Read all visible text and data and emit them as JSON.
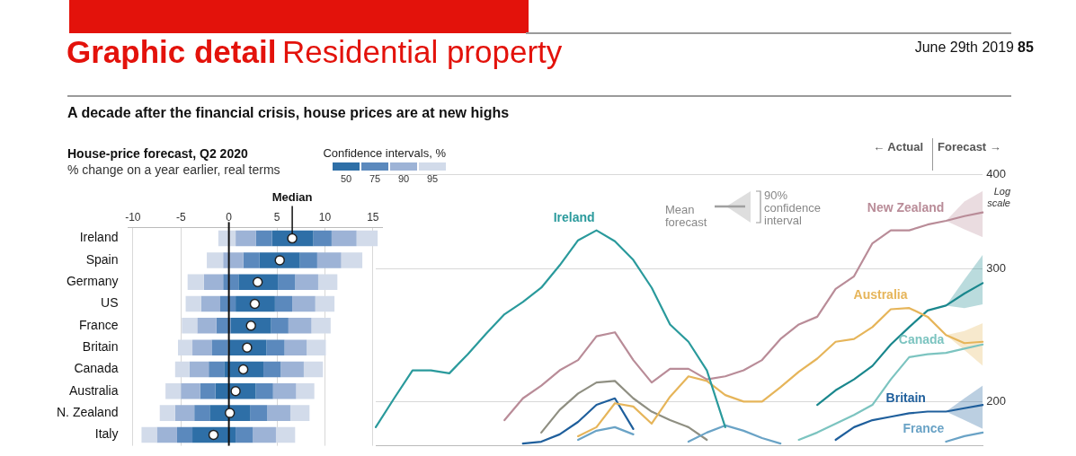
{
  "chart_data": [
    {
      "type": "bar",
      "orientation": "horizontal",
      "title": "House-price forecast, Q2 2020",
      "subtitle": "% change on a year earlier, real terms",
      "legend_title": "Confidence intervals, %",
      "legend": "top right",
      "grid": "x",
      "marker": "circle",
      "annotations": [
        "Graphic detail",
        "Residential property",
        "June 29th 2019",
        "85",
        "A decade after the financial crisis, house prices are at new highs"
      ],
      "categories": [
        "Ireland",
        "Spain",
        "Germany",
        "US",
        "France",
        "Britain",
        "Canada",
        "Australia",
        "N. Zealand",
        "Italy"
      ],
      "xlim": [
        -10.5,
        16
      ],
      "xticks": [
        -10,
        -5,
        0,
        5,
        10,
        15
      ],
      "ref_lines": [
        {
          "axis": "x",
          "value": 0,
          "color": "#111111"
        }
      ],
      "series": [
        {
          "color": "#d2dbea",
          "base": [
            -1.1,
            -2.3,
            -4.3,
            -4.5,
            -4.9,
            -5.3,
            -5.6,
            -6.6,
            -7.2,
            -9.1
          ],
          "values": [
            1.8,
            1.7,
            1.7,
            1.6,
            1.6,
            1.5,
            1.5,
            1.6,
            1.6,
            1.6
          ]
        },
        {
          "color": "#9db3d6",
          "base": [
            0.7,
            -0.6,
            -2.6,
            -2.9,
            -3.3,
            -3.8,
            -4.1,
            -5.0,
            -5.6,
            -7.5
          ],
          "values": [
            2.1,
            2.1,
            2.0,
            2.0,
            2.0,
            2.0,
            2.0,
            2.0,
            2.0,
            2.1
          ]
        },
        {
          "color": "#5b89bd",
          "base": [
            2.8,
            1.5,
            -0.6,
            -0.9,
            -1.3,
            -1.8,
            -2.1,
            -3.0,
            -3.6,
            -5.4
          ],
          "values": [
            1.7,
            1.7,
            1.6,
            1.6,
            1.5,
            1.7,
            1.6,
            1.6,
            1.6,
            1.6
          ]
        },
        {
          "name": "50",
          "color": "#2e6fa7",
          "base": [
            4.5,
            3.2,
            1.0,
            0.7,
            0.2,
            -0.1,
            -0.5,
            -1.4,
            -2.0,
            -3.8
          ],
          "values": [
            4.3,
            4.2,
            4.1,
            4.1,
            4.2,
            4.0,
            4.1,
            4.2,
            4.2,
            4.5
          ]
        },
        {
          "name": "75",
          "color": "#5b89bd",
          "base": [
            8.8,
            7.4,
            5.1,
            4.8,
            4.4,
            3.9,
            3.6,
            2.8,
            2.2,
            0.7
          ],
          "values": [
            1.9,
            1.8,
            1.8,
            1.8,
            1.8,
            1.9,
            1.8,
            1.8,
            1.8,
            1.8
          ]
        },
        {
          "name": "90",
          "color": "#9db3d6",
          "base": [
            10.7,
            9.2,
            6.9,
            6.6,
            6.2,
            5.8,
            5.4,
            4.6,
            4.0,
            2.5
          ],
          "values": [
            2.6,
            2.5,
            2.4,
            2.4,
            2.4,
            2.3,
            2.4,
            2.4,
            2.4,
            2.4
          ]
        },
        {
          "name": "95",
          "color": "#d2dbea",
          "base": [
            13.3,
            11.7,
            9.3,
            9.0,
            8.6,
            8.1,
            7.8,
            7.0,
            6.4,
            4.9
          ],
          "values": [
            2.2,
            2.2,
            2.0,
            2.0,
            2.0,
            2.0,
            2.0,
            1.9,
            2.0,
            2.0
          ]
        },
        {
          "name": "Median",
          "type": "scatter",
          "color": "#ffffff",
          "x": [
            "Ireland",
            "Spain",
            "Germany",
            "US",
            "France",
            "Britain",
            "Canada",
            "Australia",
            "N. Zealand",
            "Italy"
          ],
          "values": [
            6.6,
            5.3,
            3.0,
            2.7,
            2.3,
            1.9,
            1.5,
            0.7,
            0.1,
            -1.6
          ]
        }
      ]
    },
    {
      "type": "line",
      "log": "y",
      "grid": "y",
      "legend": false,
      "tick_labels": "y",
      "marker": "none",
      "line_style": "solid",
      "annotations": [
        "← Actual",
        "Forecast →",
        "Log scale",
        "Mean forecast",
        "90% confidence interval"
      ],
      "categories": [
        null,
        null,
        null,
        null,
        null,
        null,
        null,
        null,
        null,
        null,
        null,
        null,
        null,
        null,
        null,
        null,
        null,
        null,
        null,
        null,
        null,
        null,
        null,
        null,
        null,
        null,
        null,
        null,
        null,
        null,
        null,
        null,
        null,
        null
      ],
      "ylim": [
        175,
        400
      ],
      "yticks": [
        200,
        300,
        400
      ],
      "series": [
        {
          "name": "Ireland",
          "color": "#2a9a9c",
          "values": [
            185,
            202,
            220,
            220,
            218,
            231,
            246,
            261,
            271,
            283,
            303,
            327,
            337,
            326,
            308,
            283,
            253,
            240,
            220,
            185,
            null,
            null,
            null,
            null,
            null,
            null,
            null,
            null,
            null,
            null,
            null,
            null,
            null,
            null
          ]
        },
        {
          "name": "New Zealand",
          "color": "#b98c98",
          "values": [
            null,
            null,
            null,
            null,
            null,
            null,
            null,
            189,
            202,
            210,
            220,
            227,
            244,
            247,
            227,
            212,
            221,
            221,
            214,
            216,
            220,
            227,
            242,
            253,
            259,
            282,
            293,
            324,
            337,
            337,
            343,
            347,
            352,
            356
          ],
          "lower": [
            null,
            null,
            null,
            null,
            null,
            null,
            null,
            null,
            null,
            null,
            null,
            null,
            null,
            null,
            null,
            null,
            null,
            null,
            null,
            null,
            null,
            null,
            null,
            null,
            null,
            null,
            null,
            null,
            null,
            null,
            null,
            347,
            338,
            330
          ],
          "upper": [
            null,
            null,
            null,
            null,
            null,
            null,
            null,
            null,
            null,
            null,
            null,
            null,
            null,
            null,
            null,
            null,
            null,
            null,
            null,
            null,
            null,
            null,
            null,
            null,
            null,
            null,
            null,
            null,
            null,
            null,
            null,
            347,
            368,
            380
          ]
        },
        {
          "name": "Australia",
          "color": "#e6b55a",
          "values": [
            null,
            null,
            null,
            null,
            null,
            null,
            null,
            null,
            null,
            null,
            null,
            180,
            185,
            199,
            197,
            187,
            203,
            216,
            213,
            204,
            200,
            200,
            209,
            219,
            228,
            240,
            242,
            251,
            265,
            266,
            259,
            245,
            239,
            240
          ],
          "lower": [
            null,
            null,
            null,
            null,
            null,
            null,
            null,
            null,
            null,
            null,
            null,
            null,
            null,
            null,
            null,
            null,
            null,
            null,
            null,
            null,
            null,
            null,
            null,
            null,
            null,
            null,
            null,
            null,
            null,
            null,
            null,
            245,
            234,
            223
          ],
          "upper": [
            null,
            null,
            null,
            null,
            null,
            null,
            null,
            null,
            null,
            null,
            null,
            null,
            null,
            null,
            null,
            null,
            null,
            null,
            null,
            null,
            null,
            null,
            null,
            null,
            null,
            null,
            null,
            null,
            null,
            null,
            null,
            245,
            248,
            254
          ]
        },
        {
          "color": "#1a878d",
          "values": [
            null,
            null,
            null,
            null,
            null,
            null,
            null,
            null,
            null,
            null,
            null,
            null,
            null,
            null,
            null,
            null,
            null,
            null,
            null,
            null,
            null,
            null,
            null,
            null,
            198,
            207,
            214,
            223,
            238,
            251,
            264,
            268,
            278,
            287
          ],
          "lower": [
            null,
            null,
            null,
            null,
            null,
            null,
            null,
            null,
            null,
            null,
            null,
            null,
            null,
            null,
            null,
            null,
            null,
            null,
            null,
            null,
            null,
            null,
            null,
            null,
            null,
            null,
            null,
            null,
            null,
            null,
            null,
            268,
            266,
            269
          ],
          "upper": [
            null,
            null,
            null,
            null,
            null,
            null,
            null,
            null,
            null,
            null,
            null,
            null,
            null,
            null,
            null,
            null,
            null,
            null,
            null,
            null,
            null,
            null,
            null,
            null,
            null,
            null,
            null,
            null,
            null,
            null,
            null,
            268,
            290,
            313
          ]
        },
        {
          "name": "Canada",
          "color": "#7cc4c0",
          "values": [
            null,
            null,
            null,
            null,
            null,
            null,
            null,
            null,
            null,
            null,
            null,
            null,
            null,
            null,
            null,
            null,
            null,
            null,
            null,
            null,
            null,
            null,
            null,
            178,
            182,
            187,
            192,
            198,
            214,
            229,
            231,
            232,
            235,
            238
          ]
        },
        {
          "name": "Britain",
          "color": "#1f5f9c",
          "values": [
            null,
            null,
            null,
            null,
            null,
            null,
            null,
            null,
            176,
            177,
            181,
            188,
            198,
            202,
            184,
            null,
            null,
            null,
            null,
            null,
            null,
            null,
            null,
            null,
            null,
            178,
            185,
            189,
            191,
            193,
            194,
            194,
            196,
            198
          ],
          "lower": [
            null,
            null,
            null,
            null,
            null,
            null,
            null,
            null,
            null,
            null,
            null,
            null,
            null,
            null,
            null,
            null,
            null,
            null,
            null,
            null,
            null,
            null,
            null,
            null,
            null,
            null,
            null,
            null,
            null,
            null,
            null,
            194,
            189,
            184
          ],
          "upper": [
            null,
            null,
            null,
            null,
            null,
            null,
            null,
            null,
            null,
            null,
            null,
            null,
            null,
            null,
            null,
            null,
            null,
            null,
            null,
            null,
            null,
            null,
            null,
            null,
            null,
            null,
            null,
            null,
            null,
            null,
            null,
            194,
            202,
            210
          ]
        },
        {
          "name": "France",
          "color": "#6aa3c6",
          "values": [
            null,
            null,
            null,
            null,
            null,
            null,
            null,
            null,
            null,
            null,
            null,
            178,
            183,
            185,
            181,
            null,
            null,
            177,
            182,
            186,
            183,
            179,
            176,
            null,
            null,
            null,
            null,
            null,
            null,
            null,
            null,
            177,
            180,
            182
          ]
        },
        {
          "color": "#8f8f82",
          "values": [
            null,
            null,
            null,
            null,
            null,
            null,
            null,
            null,
            null,
            182,
            195,
            205,
            212,
            213,
            202,
            194,
            189,
            185,
            178,
            null,
            null,
            null,
            null,
            null,
            null,
            null,
            null,
            null,
            null,
            null,
            null,
            null,
            null,
            null
          ]
        }
      ]
    }
  ]
}
